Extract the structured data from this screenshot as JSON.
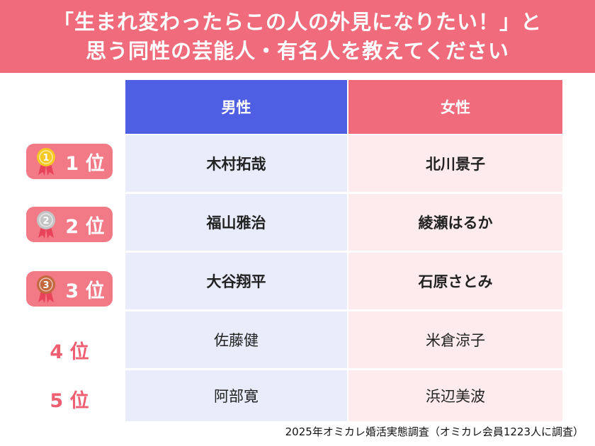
{
  "title": {
    "line1": "「生まれ変わったらこの人の外見になりたい！」と",
    "line2": "思う同性の芸能人・有名人を教えてください"
  },
  "table": {
    "header_male": "男性",
    "header_female": "女性",
    "rows": [
      {
        "rank": "1 位",
        "male": "木村拓哉",
        "female": "北川景子",
        "medal": "gold"
      },
      {
        "rank": "2 位",
        "male": "福山雅治",
        "female": "綾瀬はるか",
        "medal": "silver"
      },
      {
        "rank": "3 位",
        "male": "大谷翔平",
        "female": "石原さとみ",
        "medal": "bronze"
      },
      {
        "rank": "4 位",
        "male": "佐藤健",
        "female": "米倉涼子"
      },
      {
        "rank": "5 位",
        "male": "阿部寛",
        "female": "浜辺美波"
      }
    ]
  },
  "medal_colors": {
    "gold": "#f5c823",
    "silver": "#c4c4c4",
    "bronze": "#c3683f",
    "ribbon": "#e8435a"
  },
  "medal_digits": {
    "gold": "1",
    "silver": "2",
    "bronze": "3"
  },
  "source": "2025年オミカレ婚活実態調査（オミカレ会員1223人に調査）"
}
